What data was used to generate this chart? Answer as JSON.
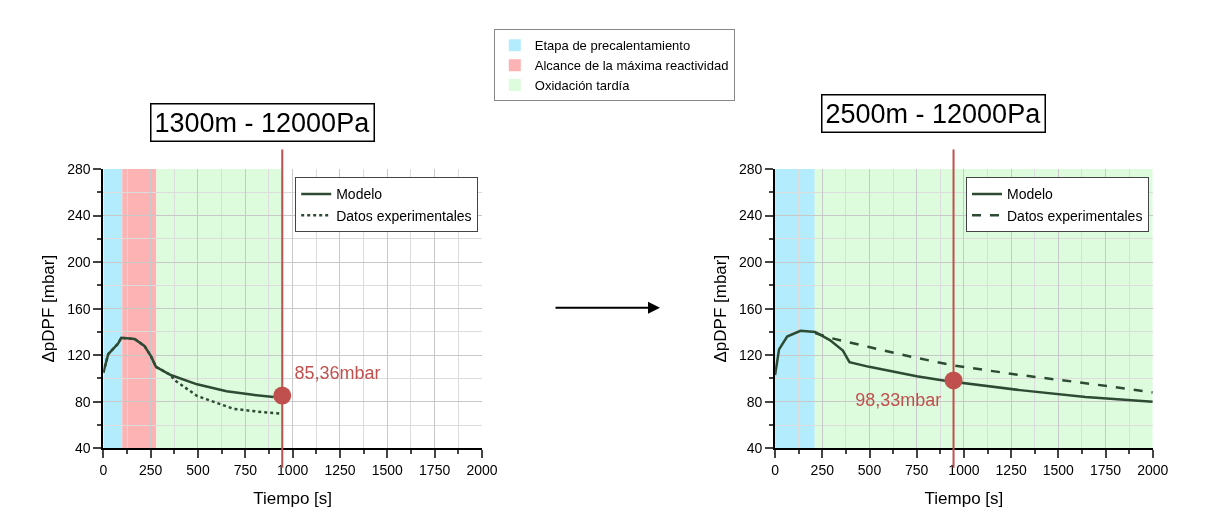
{
  "chart_data": [
    {
      "type": "line",
      "title": "1300m - 12000Pa",
      "xlabel": "Tiempo [s]",
      "ylabel": "ΔpDPF [mbar]",
      "xlim": [
        0,
        2000
      ],
      "xticks": [
        0,
        250,
        500,
        750,
        1000,
        1250,
        1500,
        1750,
        2000
      ],
      "ylim": [
        40,
        280
      ],
      "yticks": [
        40,
        80,
        120,
        160,
        200,
        240,
        280
      ],
      "grid": true,
      "legend": "top right",
      "series": [
        {
          "name": "Modelo",
          "color": "#2d4a33",
          "line_style": "solid",
          "x": [
            0,
            26,
            78,
            95,
            165,
            217,
            252,
            278,
            356,
            495,
            651,
            790,
            900
          ],
          "values": [
            105,
            121,
            130,
            135,
            134,
            128,
            119,
            110,
            103,
            95,
            89,
            86,
            84
          ]
        },
        {
          "name": "Datos experimentales",
          "color": "#2d4a33",
          "line_style": "dotted",
          "x": [
            0,
            26,
            78,
            95,
            165,
            217,
            252,
            278,
            356,
            373,
            495,
            686,
            842,
            929
          ],
          "values": [
            105,
            121,
            130,
            135,
            134,
            128,
            119,
            110,
            103,
            99,
            85,
            74,
            71,
            70
          ]
        },
        {
          "type": "scatter",
          "color": "#c0504d",
          "x": [
            945
          ],
          "values": [
            85.36
          ],
          "value_labels": [
            "85,36mbar"
          ]
        }
      ],
      "bands": [
        {
          "axis": "x",
          "from": 0,
          "to": 100,
          "label": "Etapa de precalentamiento",
          "color": "#b3ecfc"
        },
        {
          "axis": "x",
          "from": 100,
          "to": 280,
          "label": "Alcance de la máxima reactividad",
          "color": "#fdb3b3"
        },
        {
          "axis": "x",
          "from": 280,
          "to": 945,
          "label": "Oxidación tardía",
          "color": "#ddfcdd"
        }
      ],
      "ref_lines": [
        {
          "axis": "x",
          "value": 945,
          "color": "#c0504d"
        }
      ]
    },
    {
      "type": "line",
      "title": "2500m - 12000Pa",
      "xlabel": "Tiempo [s]",
      "ylabel": "ΔpDPF [mbar]",
      "xlim": [
        0,
        2000
      ],
      "xticks": [
        0,
        250,
        500,
        750,
        1000,
        1250,
        1500,
        1750,
        2000
      ],
      "ylim": [
        40,
        280
      ],
      "yticks": [
        40,
        80,
        120,
        160,
        200,
        240,
        280
      ],
      "grid": true,
      "legend": "top right",
      "series": [
        {
          "name": "Modelo",
          "color": "#2d4a33",
          "line_style": "solid",
          "x": [
            0,
            21,
            64,
            134,
            212,
            290,
            359,
            394,
            498,
            750,
            900,
            1297,
            1644,
            2000
          ],
          "values": [
            103,
            125,
            136,
            141,
            140,
            133,
            124,
            114,
            110,
            102,
            98,
            90,
            84,
            80
          ]
        },
        {
          "name": "Datos experimentales",
          "color": "#2d4a33",
          "line_style": "dashed",
          "x": [
            212,
            290,
            498,
            741,
            950,
            1297,
            1644,
            2000
          ],
          "values": [
            139,
            135,
            127,
            118,
            111,
            103,
            96,
            88
          ]
        },
        {
          "type": "scatter",
          "color": "#c0504d",
          "x": [
            945
          ],
          "values": [
            98.33
          ],
          "value_labels": [
            "98,33mbar"
          ]
        }
      ],
      "bands": [
        {
          "axis": "x",
          "from": 0,
          "to": 210,
          "color": "#b3ecfc"
        },
        {
          "axis": "x",
          "from": 210,
          "to": 2000,
          "color": "#ddfcdd"
        }
      ],
      "ref_lines": [
        {
          "axis": "x",
          "value": 945,
          "color": "#c0504d"
        }
      ]
    }
  ]
}
